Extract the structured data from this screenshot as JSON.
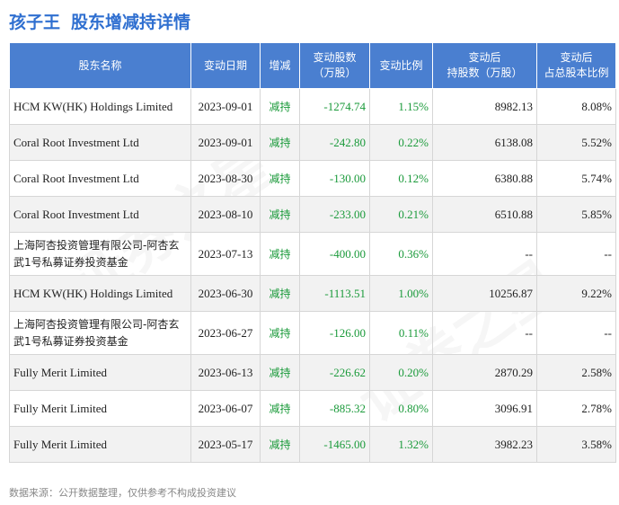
{
  "header": {
    "stock_name": "孩子王",
    "title": "股东增减持详情"
  },
  "table": {
    "columns": {
      "holder": "股东名称",
      "date": "变动日期",
      "type": "增减",
      "shares_l1": "变动股数",
      "shares_l2": "（万股）",
      "ratio": "变动比例",
      "after_l1": "变动后",
      "after_l2": "持股数（万股）",
      "pct_l1": "变动后",
      "pct_l2": "占总股本比例"
    },
    "rows": [
      {
        "holder": "HCM KW(HK) Holdings Limited",
        "date": "2023-09-01",
        "type": "减持",
        "shares": "-1274.74",
        "ratio": "1.15%",
        "after": "8982.13",
        "pct": "8.08%"
      },
      {
        "holder": "Coral Root Investment Ltd",
        "date": "2023-09-01",
        "type": "减持",
        "shares": "-242.80",
        "ratio": "0.22%",
        "after": "6138.08",
        "pct": "5.52%"
      },
      {
        "holder": "Coral Root Investment Ltd",
        "date": "2023-08-30",
        "type": "减持",
        "shares": "-130.00",
        "ratio": "0.12%",
        "after": "6380.88",
        "pct": "5.74%"
      },
      {
        "holder": "Coral Root Investment Ltd",
        "date": "2023-08-10",
        "type": "减持",
        "shares": "-233.00",
        "ratio": "0.21%",
        "after": "6510.88",
        "pct": "5.85%"
      },
      {
        "holder": "上海阿杏投资管理有限公司-阿杏玄武1号私募证券投资基金",
        "date": "2023-07-13",
        "type": "减持",
        "shares": "-400.00",
        "ratio": "0.36%",
        "after": "--",
        "pct": "--"
      },
      {
        "holder": "HCM KW(HK) Holdings Limited",
        "date": "2023-06-30",
        "type": "减持",
        "shares": "-1113.51",
        "ratio": "1.00%",
        "after": "10256.87",
        "pct": "9.22%"
      },
      {
        "holder": "上海阿杏投资管理有限公司-阿杏玄武1号私募证券投资基金",
        "date": "2023-06-27",
        "type": "减持",
        "shares": "-126.00",
        "ratio": "0.11%",
        "after": "--",
        "pct": "--"
      },
      {
        "holder": "Fully Merit Limited",
        "date": "2023-06-13",
        "type": "减持",
        "shares": "-226.62",
        "ratio": "0.20%",
        "after": "2870.29",
        "pct": "2.58%"
      },
      {
        "holder": "Fully Merit Limited",
        "date": "2023-06-07",
        "type": "减持",
        "shares": "-885.32",
        "ratio": "0.80%",
        "after": "3096.91",
        "pct": "2.78%"
      },
      {
        "holder": "Fully Merit Limited",
        "date": "2023-05-17",
        "type": "减持",
        "shares": "-1465.00",
        "ratio": "1.32%",
        "after": "3982.23",
        "pct": "3.58%"
      }
    ]
  },
  "footer": {
    "source": "数据来源：公开数据整理，仅供参考不构成投资建议"
  },
  "watermark": {
    "text": "证券之星"
  },
  "colors": {
    "accent": "#2f6fd0",
    "header_bg": "#4a7fd0",
    "decrease_green": "#1a9a3a"
  }
}
